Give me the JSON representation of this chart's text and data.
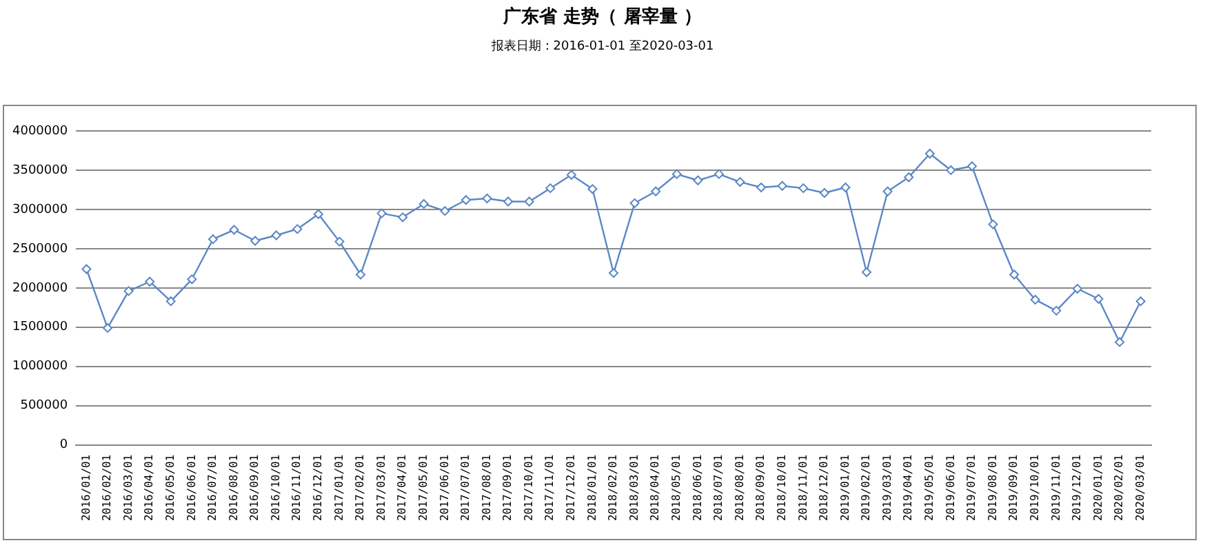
{
  "chart_data": {
    "type": "line",
    "title": "广东省 走势（ 屠宰量 ）",
    "subtitle": "报表日期：2016-01-01 至2020-03-01",
    "categories": [
      "2016/01/01",
      "2016/02/01",
      "2016/03/01",
      "2016/04/01",
      "2016/05/01",
      "2016/06/01",
      "2016/07/01",
      "2016/08/01",
      "2016/09/01",
      "2016/10/01",
      "2016/11/01",
      "2016/12/01",
      "2017/01/01",
      "2017/02/01",
      "2017/03/01",
      "2017/04/01",
      "2017/05/01",
      "2017/06/01",
      "2017/07/01",
      "2017/08/01",
      "2017/09/01",
      "2017/10/01",
      "2017/11/01",
      "2017/12/01",
      "2018/01/01",
      "2018/02/01",
      "2018/03/01",
      "2018/04/01",
      "2018/05/01",
      "2018/06/01",
      "2018/07/01",
      "2018/08/01",
      "2018/09/01",
      "2018/10/01",
      "2018/11/01",
      "2018/12/01",
      "2019/01/01",
      "2019/02/01",
      "2019/03/01",
      "2019/04/01",
      "2019/05/01",
      "2019/06/01",
      "2019/07/01",
      "2019/08/01",
      "2019/09/01",
      "2019/10/01",
      "2019/11/01",
      "2019/12/01",
      "2020/01/01",
      "2020/02/01",
      "2020/03/01"
    ],
    "series": [
      {
        "color": "#5b87c5",
        "values": [
          2240000,
          1490000,
          1960000,
          2080000,
          1830000,
          2110000,
          2620000,
          2740000,
          2600000,
          2670000,
          2750000,
          2940000,
          2590000,
          2170000,
          2950000,
          2900000,
          3070000,
          2980000,
          3120000,
          3140000,
          3100000,
          3100000,
          3270000,
          3440000,
          3260000,
          2190000,
          3080000,
          3230000,
          3450000,
          3370000,
          3450000,
          3350000,
          3280000,
          3300000,
          3270000,
          3210000,
          3280000,
          2200000,
          3230000,
          3410000,
          3710000,
          3500000,
          3550000,
          2810000,
          2170000,
          1850000,
          1710000,
          1990000,
          1860000,
          1310000,
          1830000
        ]
      }
    ],
    "ylim": [
      0,
      4000000
    ],
    "yticks": [
      0,
      500000,
      1000000,
      1500000,
      2000000,
      2500000,
      3000000,
      3500000,
      4000000
    ],
    "grid": "y",
    "legend": false,
    "marker": "diamond",
    "line_style": "solid"
  }
}
